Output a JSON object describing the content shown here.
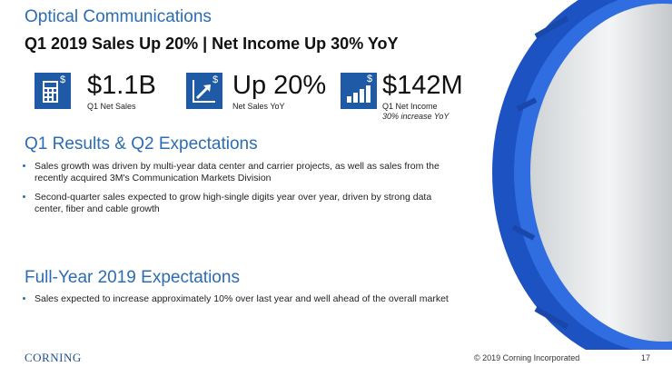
{
  "header": {
    "title": "Optical Communications",
    "subtitle": "Q1 2019 Sales Up 20% | Net Income Up 30% YoY"
  },
  "kpis": [
    {
      "icon": "$",
      "value": "$1.1B",
      "label": "Q1 Net Sales"
    },
    {
      "icon": "$",
      "value": "Up 20%",
      "label": "Net Sales YoY"
    },
    {
      "icon": "$",
      "value": "$142M",
      "label": "Q1 Net Income",
      "note": "30% increase YoY"
    }
  ],
  "sections": [
    {
      "heading": "Q1 Results & Q2 Expectations",
      "bullets": [
        "Sales growth was driven by multi-year data center and carrier projects, as well as sales from the recently acquired 3M's Communication Markets Division",
        "Second-quarter sales expected to grow high-single digits year over year, driven by strong data center, fiber and cable growth"
      ]
    },
    {
      "heading": "Full-Year 2019 Expectations",
      "bullets": [
        "Sales expected to increase approximately 10% over last year and well ahead of the overall market"
      ]
    }
  ],
  "footer": {
    "logo": "CORNING",
    "copyright": "© 2019 Corning Incorporated",
    "page": "17"
  }
}
